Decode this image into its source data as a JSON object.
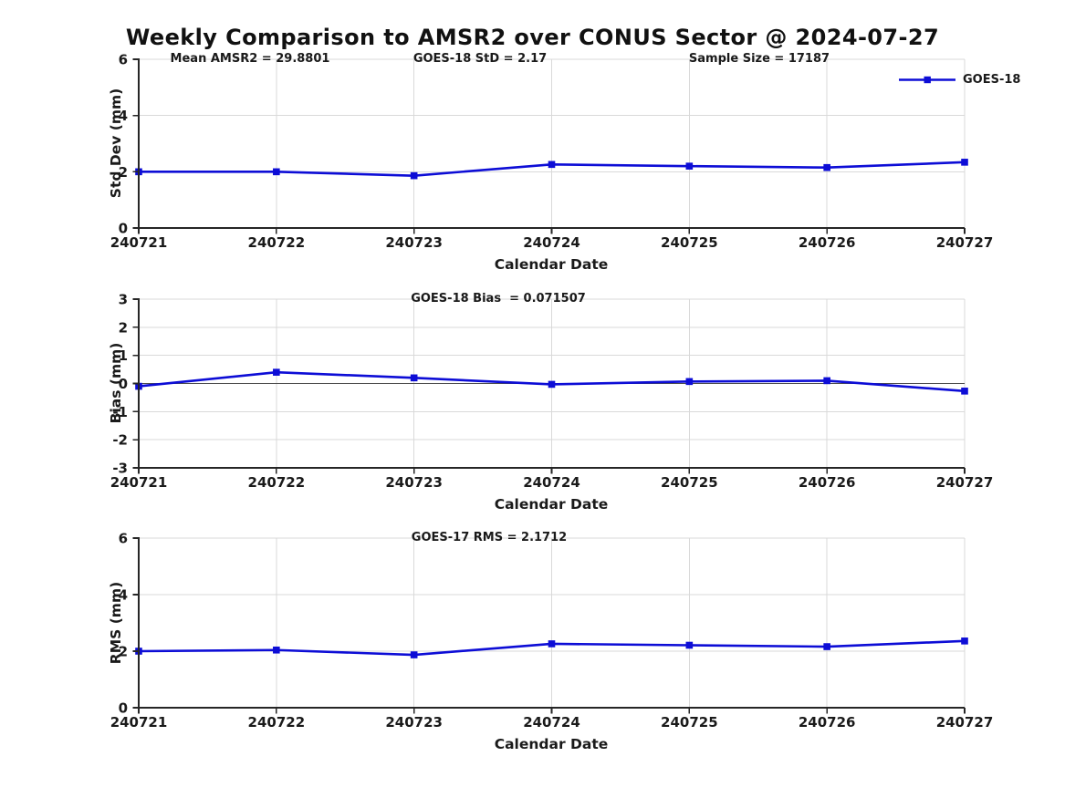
{
  "figure": {
    "title": "Weekly Comparison to AMSR2 over CONUS Sector @ 2024-07-27",
    "legend_label": "GOES-18",
    "colors": {
      "series": "#0d0dd6",
      "grid": "#d9d9d9",
      "axis": "#262626",
      "text": "#1a1a1a",
      "zero_line": "#4d4d4d",
      "background": "#ffffff"
    }
  },
  "chart_data": [
    {
      "id": "std-dev",
      "type": "line",
      "title": "",
      "categories": [
        "240721",
        "240722",
        "240723",
        "240724",
        "240725",
        "240726",
        "240727"
      ],
      "series": [
        {
          "name": "GOES-18",
          "values": [
            2.0,
            2.0,
            1.86,
            2.26,
            2.2,
            2.15,
            2.34
          ]
        }
      ],
      "xlabel": "Calendar Date",
      "ylabel": "Std Dev (mm)",
      "ylim": [
        0,
        6
      ],
      "yticks": [
        0,
        2,
        4,
        6
      ],
      "grid": true,
      "annotations": [
        "Mean AMSR2 = 29.8801",
        "GOES-18 StD = 2.17",
        "Sample Size = 17187"
      ],
      "legend": {
        "label": "GOES-18",
        "position": "upper right",
        "frame": false
      }
    },
    {
      "id": "bias",
      "type": "line",
      "title": "",
      "categories": [
        "240721",
        "240722",
        "240723",
        "240724",
        "240725",
        "240726",
        "240727"
      ],
      "series": [
        {
          "name": "GOES-18",
          "values": [
            -0.1,
            0.4,
            0.2,
            -0.03,
            0.07,
            0.1,
            -0.27
          ]
        }
      ],
      "xlabel": "Calendar Date",
      "ylabel": "Bias (mm)",
      "ylim": [
        -3,
        3
      ],
      "yticks": [
        -3,
        -2,
        -1,
        0,
        1,
        2,
        3
      ],
      "grid": true,
      "zero_line": true,
      "annotations": [
        "GOES-18 Bias  = 0.071507"
      ]
    },
    {
      "id": "rms",
      "type": "line",
      "title": "",
      "categories": [
        "240721",
        "240722",
        "240723",
        "240724",
        "240725",
        "240726",
        "240727"
      ],
      "series": [
        {
          "name": "GOES-18",
          "values": [
            2.0,
            2.04,
            1.87,
            2.26,
            2.21,
            2.16,
            2.36
          ]
        }
      ],
      "xlabel": "Calendar Date",
      "ylabel": "RMS (mm)",
      "ylim": [
        0,
        6
      ],
      "yticks": [
        0,
        2,
        4,
        6
      ],
      "grid": true,
      "annotations": [
        "GOES-17 RMS = 2.1712"
      ]
    }
  ]
}
